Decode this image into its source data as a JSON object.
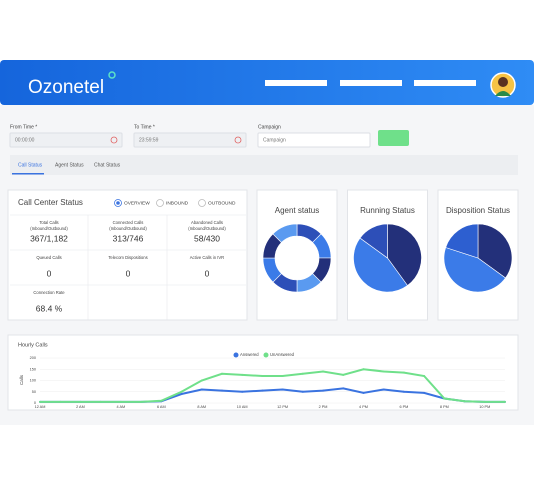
{
  "header": {
    "logo": "Ozonetel"
  },
  "filters": [
    {
      "label": "From Time *",
      "value": "00:00:00"
    },
    {
      "label": "To Time *",
      "value": "23:59:59"
    },
    {
      "label": "Campaign",
      "value": "Campaign"
    }
  ],
  "tabs": [
    "Call Status",
    "Agent Status",
    "Chat Status"
  ],
  "call_center": {
    "title": "Call Center Status",
    "options": [
      "OVERVIEW",
      "INBOUND",
      "OUTBOUND"
    ],
    "metrics": [
      {
        "label": "Total Calls",
        "sublabel": "(Inbound/Outbound)",
        "value": "367/1,182"
      },
      {
        "label": "Connected Calls",
        "sublabel": "(Inbound/Outbound)",
        "value": "313/746"
      },
      {
        "label": "Abandoned Calls",
        "sublabel": "(Inbound/Outbound)",
        "value": "58/430"
      },
      {
        "label": "Queued Calls",
        "value": "0"
      },
      {
        "label": "Telecom Dispositions",
        "value": "0"
      },
      {
        "label": "Active Calls in IVR",
        "value": "0"
      },
      {
        "label": "Connection Rate",
        "value": "68.4 %"
      }
    ]
  },
  "status_charts": [
    {
      "title": "Agent status",
      "type": "donut",
      "values": [
        12.5,
        12.5,
        12.5,
        12.5,
        12.5,
        12.5,
        12.5,
        12.5
      ],
      "colors": [
        "#2d4fb8",
        "#3b7be8",
        "#23307a",
        "#5a9af0",
        "#2d4fb8",
        "#3b7be8",
        "#23307a",
        "#5a9af0"
      ]
    },
    {
      "title": "Running Status",
      "type": "pie",
      "values": [
        40,
        45,
        15
      ],
      "colors": [
        "#23307a",
        "#3b7be8",
        "#2d4fb8"
      ]
    },
    {
      "title": "Disposition Status",
      "type": "pie",
      "values": [
        35,
        45,
        20
      ],
      "colors": [
        "#23307a",
        "#3b7be8",
        "#2d5fd0"
      ]
    }
  ],
  "hourly_calls": {
    "type": "line",
    "title": "Hourly Calls",
    "y_label": "Calls",
    "ylim": [
      0,
      200
    ],
    "yticks": [
      0,
      50,
      100,
      150,
      200
    ],
    "categories": [
      "12 AM",
      null,
      "2 AM",
      null,
      "4 AM",
      null,
      "6 AM",
      null,
      "8 AM",
      null,
      "10 AM",
      null,
      "12 PM",
      null,
      "2 PM",
      null,
      "4 PM",
      null,
      "6 PM",
      null,
      "8 PM",
      null,
      "10 PM",
      null
    ],
    "series": [
      {
        "name": "Answered",
        "color": "#3a73e0",
        "values": [
          5,
          5,
          5,
          5,
          5,
          5,
          8,
          40,
          60,
          55,
          50,
          55,
          60,
          50,
          55,
          65,
          45,
          60,
          50,
          45,
          20,
          8,
          5,
          5
        ]
      },
      {
        "name": "UnAnswered",
        "color": "#6fe08a",
        "values": [
          5,
          5,
          5,
          5,
          5,
          5,
          10,
          50,
          100,
          130,
          125,
          120,
          120,
          130,
          140,
          125,
          150,
          140,
          135,
          120,
          20,
          8,
          5,
          5
        ]
      }
    ]
  }
}
